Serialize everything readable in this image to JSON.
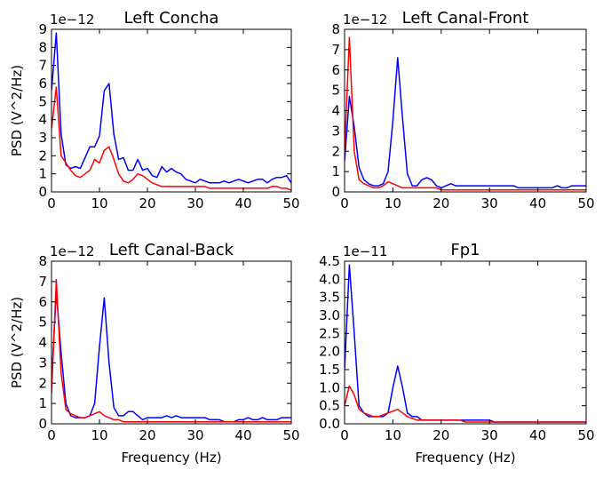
{
  "chart_data": [
    {
      "type": "line",
      "title": "Left Concha",
      "xlabel": "",
      "ylabel": "PSD (V^2/Hz)",
      "offset_text": "1e−12",
      "xlim": [
        0,
        50
      ],
      "ylim": [
        0,
        9
      ],
      "xticks": [
        "0",
        "10",
        "20",
        "30",
        "40",
        "50"
      ],
      "yticks": [
        "0",
        "1",
        "2",
        "3",
        "4",
        "5",
        "6",
        "7",
        "8",
        "9"
      ],
      "x": [
        0,
        1,
        2,
        3,
        4,
        5,
        6,
        7,
        8,
        9,
        10,
        11,
        12,
        13,
        14,
        15,
        16,
        17,
        18,
        19,
        20,
        21,
        22,
        23,
        24,
        25,
        26,
        27,
        28,
        29,
        30,
        31,
        32,
        33,
        34,
        35,
        36,
        37,
        38,
        39,
        40,
        41,
        42,
        43,
        44,
        45,
        46,
        47,
        48,
        49,
        50
      ],
      "series": [
        {
          "color": "#0000ff",
          "values": [
            5.6,
            8.8,
            3.2,
            1.5,
            1.3,
            1.4,
            1.3,
            1.9,
            2.5,
            2.5,
            3.1,
            5.6,
            6.0,
            3.2,
            1.8,
            1.9,
            1.2,
            1.2,
            1.8,
            1.2,
            1.3,
            0.9,
            0.8,
            1.4,
            1.1,
            1.3,
            1.1,
            1.0,
            0.7,
            0.6,
            0.5,
            0.7,
            0.6,
            0.5,
            0.5,
            0.5,
            0.6,
            0.5,
            0.6,
            0.7,
            0.6,
            0.5,
            0.6,
            0.7,
            0.7,
            0.5,
            0.7,
            0.8,
            0.8,
            0.9,
            0.5
          ]
        },
        {
          "color": "#ff0000",
          "values": [
            3.5,
            5.8,
            2.0,
            1.6,
            1.2,
            0.9,
            0.8,
            1.0,
            1.2,
            1.8,
            1.6,
            2.3,
            2.5,
            1.8,
            1.0,
            0.6,
            0.5,
            0.7,
            1.0,
            0.9,
            0.7,
            0.5,
            0.4,
            0.3,
            0.3,
            0.3,
            0.3,
            0.3,
            0.3,
            0.3,
            0.3,
            0.3,
            0.3,
            0.2,
            0.2,
            0.2,
            0.2,
            0.2,
            0.2,
            0.2,
            0.2,
            0.2,
            0.2,
            0.2,
            0.2,
            0.2,
            0.3,
            0.3,
            0.2,
            0.2,
            0.1
          ]
        }
      ]
    },
    {
      "type": "line",
      "title": "Left Canal-Front",
      "xlabel": "",
      "ylabel": "",
      "offset_text": "1e−12",
      "xlim": [
        0,
        50
      ],
      "ylim": [
        0,
        8
      ],
      "xticks": [
        "0",
        "10",
        "20",
        "30",
        "40",
        "50"
      ],
      "yticks": [
        "0",
        "1",
        "2",
        "3",
        "4",
        "5",
        "6",
        "7",
        "8"
      ],
      "x": [
        0,
        1,
        2,
        3,
        4,
        5,
        6,
        7,
        8,
        9,
        10,
        11,
        12,
        13,
        14,
        15,
        16,
        17,
        18,
        19,
        20,
        21,
        22,
        23,
        24,
        25,
        26,
        27,
        28,
        29,
        30,
        31,
        32,
        33,
        34,
        35,
        36,
        37,
        38,
        39,
        40,
        41,
        42,
        43,
        44,
        45,
        46,
        47,
        48,
        49,
        50
      ],
      "series": [
        {
          "color": "#0000ff",
          "values": [
            1.5,
            4.7,
            3.2,
            1.2,
            0.6,
            0.4,
            0.3,
            0.3,
            0.4,
            1.0,
            3.5,
            6.6,
            3.6,
            0.9,
            0.3,
            0.3,
            0.6,
            0.7,
            0.6,
            0.3,
            0.2,
            0.3,
            0.4,
            0.3,
            0.3,
            0.3,
            0.3,
            0.3,
            0.3,
            0.3,
            0.3,
            0.3,
            0.3,
            0.3,
            0.3,
            0.3,
            0.2,
            0.2,
            0.2,
            0.2,
            0.2,
            0.2,
            0.2,
            0.2,
            0.3,
            0.2,
            0.2,
            0.3,
            0.3,
            0.3,
            0.3
          ]
        },
        {
          "color": "#ff0000",
          "values": [
            2.0,
            7.6,
            2.0,
            0.6,
            0.4,
            0.3,
            0.2,
            0.2,
            0.3,
            0.5,
            0.4,
            0.3,
            0.2,
            0.2,
            0.2,
            0.2,
            0.2,
            0.2,
            0.2,
            0.2,
            0.1,
            0.1,
            0.1,
            0.1,
            0.1,
            0.1,
            0.1,
            0.1,
            0.1,
            0.1,
            0.1,
            0.1,
            0.1,
            0.1,
            0.1,
            0.1,
            0.1,
            0.1,
            0.1,
            0.1,
            0.1,
            0.1,
            0.1,
            0.1,
            0.1,
            0.1,
            0.1,
            0.1,
            0.1,
            0.1,
            0.1
          ]
        }
      ]
    },
    {
      "type": "line",
      "title": "Left Canal-Back",
      "xlabel": "Frequency (Hz)",
      "ylabel": "PSD (V^2/Hz)",
      "offset_text": "1e−12",
      "xlim": [
        0,
        50
      ],
      "ylim": [
        0,
        8
      ],
      "xticks": [
        "0",
        "10",
        "20",
        "30",
        "40",
        "50"
      ],
      "yticks": [
        "0",
        "1",
        "2",
        "3",
        "4",
        "5",
        "6",
        "7",
        "8"
      ],
      "x": [
        0,
        1,
        2,
        3,
        4,
        5,
        6,
        7,
        8,
        9,
        10,
        11,
        12,
        13,
        14,
        15,
        16,
        17,
        18,
        19,
        20,
        21,
        22,
        23,
        24,
        25,
        26,
        27,
        28,
        29,
        30,
        31,
        32,
        33,
        34,
        35,
        36,
        37,
        38,
        39,
        40,
        41,
        42,
        43,
        44,
        45,
        46,
        47,
        48,
        49,
        50
      ],
      "series": [
        {
          "color": "#0000ff",
          "values": [
            2.0,
            6.5,
            3.5,
            1.0,
            0.4,
            0.3,
            0.3,
            0.3,
            0.4,
            1.0,
            3.8,
            6.2,
            3.0,
            0.8,
            0.4,
            0.4,
            0.6,
            0.6,
            0.4,
            0.2,
            0.3,
            0.3,
            0.3,
            0.3,
            0.4,
            0.3,
            0.4,
            0.3,
            0.3,
            0.3,
            0.3,
            0.3,
            0.3,
            0.2,
            0.2,
            0.2,
            0.1,
            0.1,
            0.1,
            0.2,
            0.2,
            0.3,
            0.2,
            0.2,
            0.3,
            0.2,
            0.2,
            0.2,
            0.3,
            0.3,
            0.3
          ]
        },
        {
          "color": "#ff0000",
          "values": [
            1.5,
            7.1,
            2.5,
            0.7,
            0.5,
            0.4,
            0.3,
            0.3,
            0.4,
            0.5,
            0.6,
            0.4,
            0.3,
            0.2,
            0.2,
            0.1,
            0.1,
            0.1,
            0.1,
            0.1,
            0.1,
            0.1,
            0.1,
            0.1,
            0.1,
            0.1,
            0.1,
            0.1,
            0.1,
            0.1,
            0.1,
            0.1,
            0.1,
            0.1,
            0.1,
            0.1,
            0.1,
            0.1,
            0.1,
            0.1,
            0.1,
            0.1,
            0.1,
            0.1,
            0.1,
            0.1,
            0.1,
            0.1,
            0.1,
            0.1,
            0.1
          ]
        }
      ]
    },
    {
      "type": "line",
      "title": "Fp1",
      "xlabel": "Frequency (Hz)",
      "ylabel": "",
      "offset_text": "1e−11",
      "xlim": [
        0,
        50
      ],
      "ylim": [
        0,
        4.5
      ],
      "xticks": [
        "0",
        "10",
        "20",
        "30",
        "40",
        "50"
      ],
      "yticks": [
        "0.0",
        "0.5",
        "1.0",
        "1.5",
        "2.0",
        "2.5",
        "3.0",
        "3.5",
        "4.0",
        "4.5"
      ],
      "x": [
        0,
        1,
        2,
        3,
        4,
        5,
        6,
        7,
        8,
        9,
        10,
        11,
        12,
        13,
        14,
        15,
        16,
        17,
        18,
        19,
        20,
        21,
        22,
        23,
        24,
        25,
        26,
        27,
        28,
        29,
        30,
        31,
        32,
        33,
        34,
        35,
        36,
        37,
        38,
        39,
        40,
        41,
        42,
        43,
        44,
        45,
        46,
        47,
        48,
        49,
        50
      ],
      "series": [
        {
          "color": "#0000ff",
          "values": [
            1.5,
            4.4,
            2.5,
            0.5,
            0.3,
            0.2,
            0.2,
            0.2,
            0.2,
            0.3,
            1.0,
            1.6,
            1.0,
            0.3,
            0.2,
            0.2,
            0.1,
            0.1,
            0.1,
            0.1,
            0.1,
            0.1,
            0.1,
            0.1,
            0.1,
            0.1,
            0.1,
            0.1,
            0.1,
            0.1,
            0.1,
            0.05,
            0.05,
            0.05,
            0.05,
            0.05,
            0.05,
            0.05,
            0.05,
            0.05,
            0.05,
            0.05,
            0.05,
            0.05,
            0.05,
            0.05,
            0.05,
            0.05,
            0.05,
            0.05,
            0.05
          ]
        },
        {
          "color": "#ff0000",
          "values": [
            0.5,
            1.05,
            0.8,
            0.4,
            0.3,
            0.25,
            0.2,
            0.2,
            0.25,
            0.3,
            0.35,
            0.4,
            0.3,
            0.2,
            0.15,
            0.1,
            0.1,
            0.1,
            0.1,
            0.1,
            0.1,
            0.1,
            0.1,
            0.1,
            0.1,
            0.05,
            0.05,
            0.05,
            0.05,
            0.05,
            0.05,
            0.05,
            0.05,
            0.05,
            0.05,
            0.05,
            0.05,
            0.05,
            0.05,
            0.05,
            0.05,
            0.05,
            0.05,
            0.05,
            0.05,
            0.05,
            0.05,
            0.05,
            0.05,
            0.05,
            0.05
          ]
        }
      ]
    }
  ]
}
